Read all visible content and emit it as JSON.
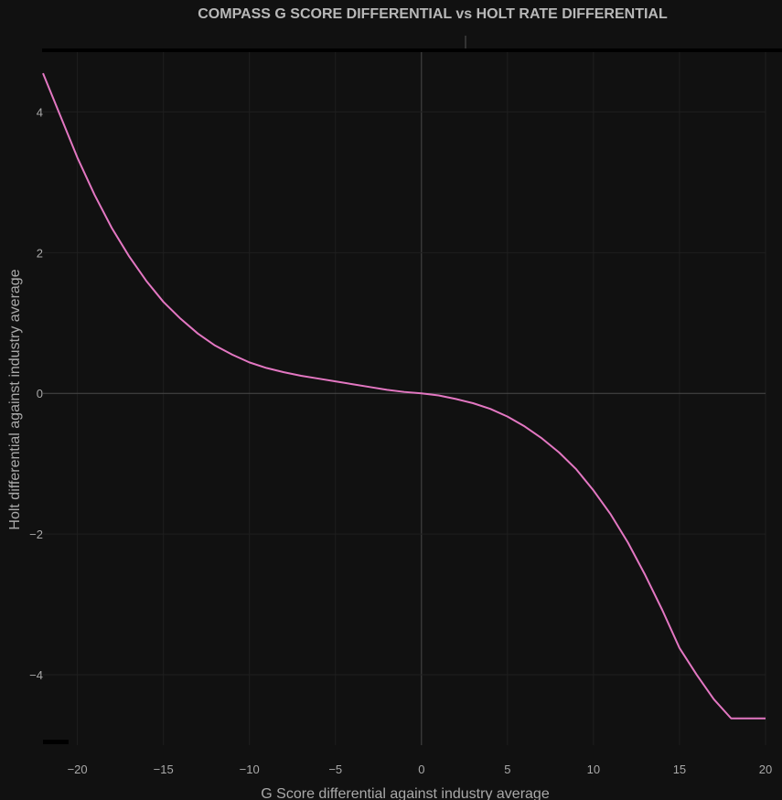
{
  "colors": {
    "background": "#111111",
    "grid": "#1f1f1f",
    "zero_line": "#4a4a4a",
    "series": "#e377c2",
    "text": "#a9a9a9",
    "title": "#b8b8b8"
  },
  "chart_data": {
    "type": "line",
    "title": "COMPASS G SCORE DIFFERENTIAL vs HOLT RATE DIFFERENTIAL",
    "xlabel": "G Score differential against industry average",
    "ylabel": "Holt differential against industry average",
    "xlim": [
      -22,
      20
    ],
    "ylim": [
      -5.0,
      4.85
    ],
    "x_ticks": [
      -20,
      -15,
      -10,
      -5,
      0,
      5,
      10,
      15,
      20
    ],
    "x_tick_labels": [
      "−20",
      "−15",
      "−10",
      "−5",
      "0",
      "5",
      "10",
      "15",
      "20"
    ],
    "y_ticks": [
      -4,
      -2,
      0,
      2,
      4
    ],
    "y_tick_labels": [
      "−4",
      "−2",
      "0",
      "2",
      "4"
    ],
    "grid": true,
    "series": [
      {
        "x": [
          -22,
          -21,
          -20,
          -19,
          -18,
          -17,
          -16,
          -15,
          -14,
          -13,
          -12,
          -11,
          -10,
          -9,
          -8,
          -7,
          -6,
          -5,
          -4,
          -3,
          -2,
          -1,
          0,
          1,
          2,
          3,
          4,
          5,
          6,
          7,
          8,
          9,
          10,
          11,
          12,
          13,
          14,
          15,
          16,
          17,
          18,
          19,
          20
        ],
        "y": [
          4.55,
          3.95,
          3.35,
          2.82,
          2.35,
          1.95,
          1.6,
          1.3,
          1.06,
          0.85,
          0.68,
          0.55,
          0.44,
          0.36,
          0.3,
          0.25,
          0.21,
          0.17,
          0.13,
          0.09,
          0.05,
          0.02,
          0.0,
          -0.03,
          -0.08,
          -0.14,
          -0.22,
          -0.33,
          -0.47,
          -0.64,
          -0.84,
          -1.08,
          -1.38,
          -1.72,
          -2.12,
          -2.58,
          -3.08,
          -3.62,
          -4.0,
          -4.35,
          -4.62,
          -4.62,
          -4.62
        ]
      }
    ]
  }
}
